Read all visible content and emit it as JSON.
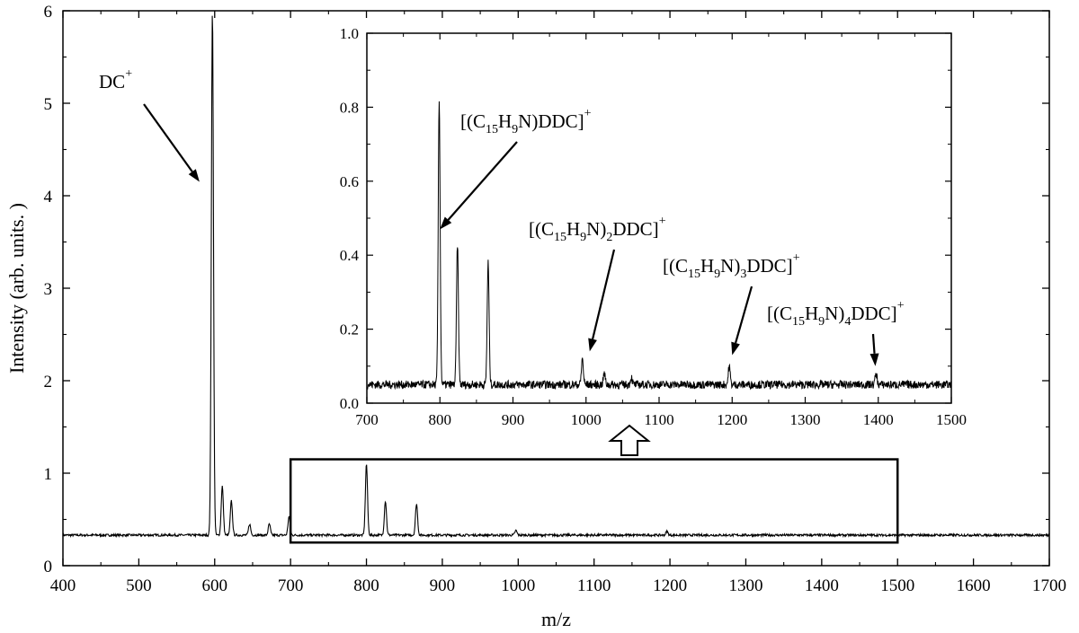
{
  "chart_data": [
    {
      "id": "main",
      "type": "line",
      "xlabel": "m/z",
      "ylabel": "Intensity (arb. units. )",
      "xlim": [
        400,
        1700
      ],
      "ylim": [
        0,
        6
      ],
      "xticks": [
        400,
        500,
        600,
        700,
        800,
        900,
        1000,
        1100,
        1200,
        1300,
        1400,
        1500,
        1600,
        1700
      ],
      "yticks": [
        0,
        1,
        2,
        3,
        4,
        5,
        6
      ],
      "grid": false,
      "baseline": 0.33,
      "peaks": [
        {
          "x": 597,
          "y": 6.0
        },
        {
          "x": 610,
          "y": 0.86
        },
        {
          "x": 622,
          "y": 0.7
        },
        {
          "x": 646,
          "y": 0.45
        },
        {
          "x": 672,
          "y": 0.45
        },
        {
          "x": 698,
          "y": 0.53
        },
        {
          "x": 800,
          "y": 1.1
        },
        {
          "x": 825,
          "y": 0.7
        },
        {
          "x": 866,
          "y": 0.67
        },
        {
          "x": 997,
          "y": 0.38
        },
        {
          "x": 1196,
          "y": 0.37
        }
      ],
      "annotations": [
        {
          "text": "DC",
          "sup": "+",
          "points_to": {
            "x": 580,
            "y": 4.15
          }
        }
      ],
      "highlight_box": {
        "x": [
          700,
          1500
        ],
        "y": [
          0.25,
          1.15
        ]
      }
    },
    {
      "id": "inset",
      "type": "line",
      "xlim": [
        700,
        1500
      ],
      "ylim": [
        0.0,
        1.0
      ],
      "xticks": [
        700,
        800,
        900,
        1000,
        1100,
        1200,
        1300,
        1400,
        1500
      ],
      "yticks": [
        0.0,
        0.2,
        0.4,
        0.6,
        0.8,
        1.0
      ],
      "xtick_labels": [
        "700",
        "800",
        "900",
        "1000",
        "1100",
        "1200",
        "1300",
        "1400",
        "1500"
      ],
      "ytick_labels": [
        "0.0",
        "0.2",
        "0.4",
        "0.6",
        "0.8",
        "1.0"
      ],
      "grid": false,
      "baseline": 0.05,
      "peaks": [
        {
          "x": 799,
          "y": 0.82
        },
        {
          "x": 824,
          "y": 0.43
        },
        {
          "x": 866,
          "y": 0.38
        },
        {
          "x": 995,
          "y": 0.12
        },
        {
          "x": 1025,
          "y": 0.08
        },
        {
          "x": 1062,
          "y": 0.07
        },
        {
          "x": 1196,
          "y": 0.1
        },
        {
          "x": 1397,
          "y": 0.08
        }
      ],
      "annotations": [
        {
          "parts": [
            "[(C",
            "15",
            "H",
            "9",
            "N)DDC]",
            "+"
          ],
          "points_to": {
            "x": 800,
            "y": 0.47
          }
        },
        {
          "parts": [
            "[(C",
            "15",
            "H",
            "9",
            "N)",
            "2",
            "DDC]",
            "+"
          ],
          "points_to": {
            "x": 1005,
            "y": 0.14
          }
        },
        {
          "parts": [
            "[(C",
            "15",
            "H",
            "9",
            "N)",
            "3",
            "DDC]",
            "+"
          ],
          "points_to": {
            "x": 1200,
            "y": 0.13
          }
        },
        {
          "parts": [
            "[(C",
            "15",
            "H",
            "9",
            "N)",
            "4",
            "DDC]",
            "+"
          ],
          "points_to": {
            "x": 1396,
            "y": 0.1
          }
        }
      ]
    }
  ]
}
